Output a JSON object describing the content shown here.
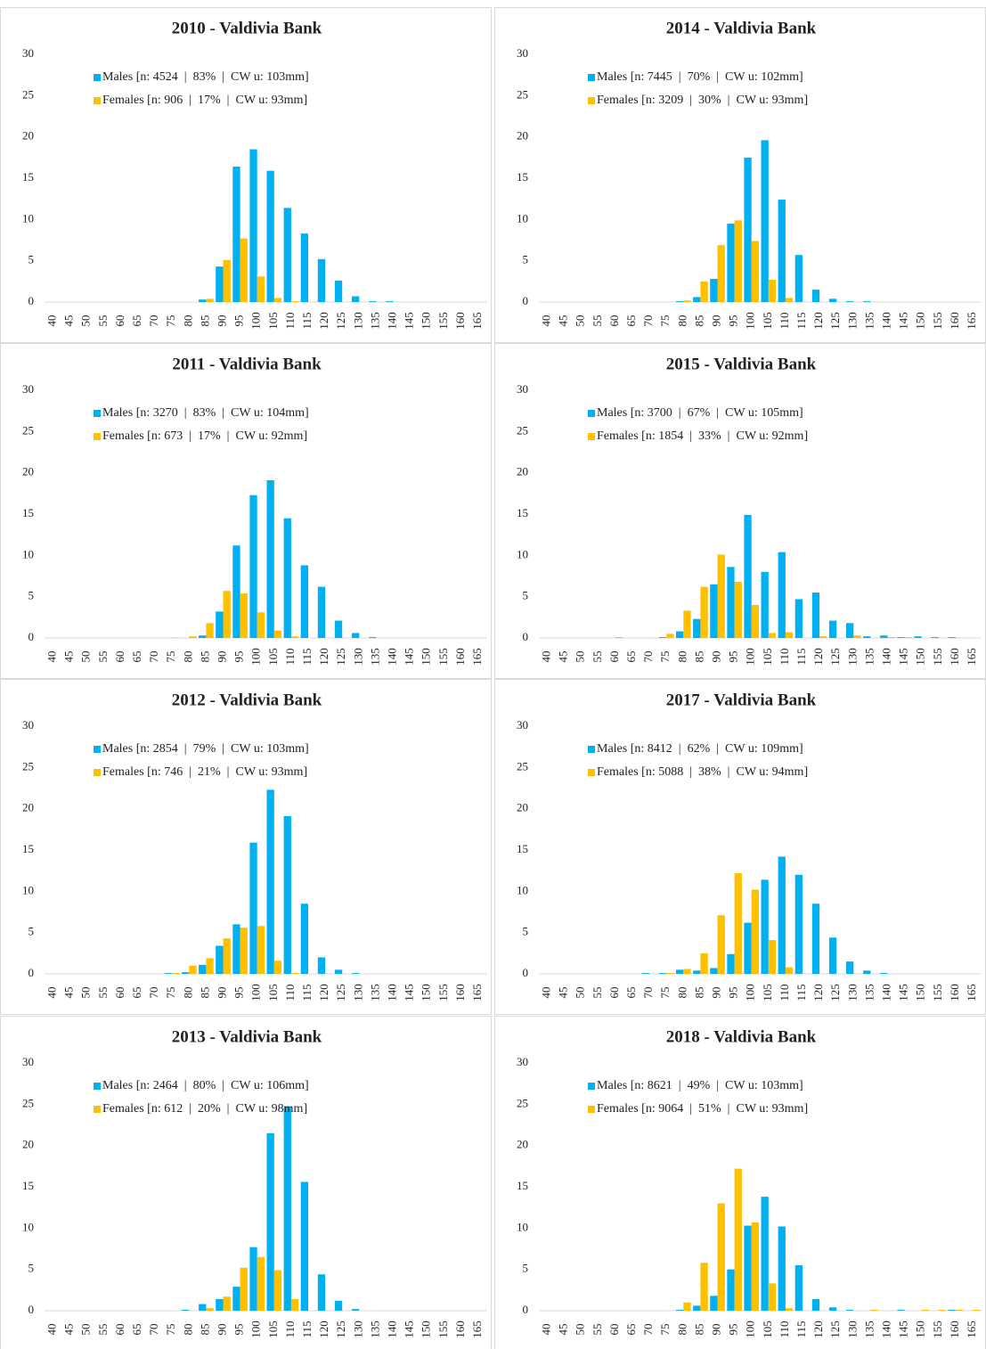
{
  "chart_data": [
    {
      "type": "bar",
      "title": "2010 - Valdivia Bank",
      "categories": [
        "40",
        "45",
        "50",
        "55",
        "60",
        "65",
        "70",
        "75",
        "80",
        "85",
        "90",
        "95",
        "100",
        "105",
        "110",
        "115",
        "120",
        "125",
        "130",
        "135",
        "140",
        "145",
        "150",
        "155",
        "160",
        "165"
      ],
      "ylim": [
        0,
        30
      ],
      "yticks": [
        0,
        5,
        10,
        15,
        20,
        25,
        30
      ],
      "series": [
        {
          "name": "Males [n: 4524  |  83%  |  CW u: 103mm]",
          "color": "#00b0f0",
          "values": [
            0,
            0,
            0,
            0,
            0,
            0,
            0,
            0,
            0,
            0.3,
            4.3,
            16.4,
            18.5,
            15.9,
            11.4,
            8.3,
            5.2,
            2.6,
            0.7,
            0.1,
            0.1,
            0,
            0,
            0,
            0,
            0
          ]
        },
        {
          "name": "Females [n: 906  |  17%  |  CW u: 93mm]",
          "color": "#ffc000",
          "values": [
            0,
            0,
            0,
            0,
            0,
            0,
            0,
            0,
            0,
            0.4,
            5.1,
            7.7,
            3.1,
            0.5,
            0.1,
            0,
            0,
            0,
            0,
            0,
            0,
            0,
            0,
            0,
            0,
            0
          ]
        }
      ]
    },
    {
      "type": "bar",
      "title": "2011 - Valdivia Bank",
      "categories": [
        "40",
        "45",
        "50",
        "55",
        "60",
        "65",
        "70",
        "75",
        "80",
        "85",
        "90",
        "95",
        "100",
        "105",
        "110",
        "115",
        "120",
        "125",
        "130",
        "135",
        "140",
        "145",
        "150",
        "155",
        "160",
        "165"
      ],
      "ylim": [
        0,
        30
      ],
      "yticks": [
        0,
        5,
        10,
        15,
        20,
        25,
        30
      ],
      "series": [
        {
          "name": "Males [n: 3270  |  83%  |  CW u: 104mm]",
          "color": "#00b0f0",
          "values": [
            0,
            0,
            0,
            0,
            0,
            0,
            0,
            0,
            0,
            0.3,
            3.2,
            11.2,
            17.3,
            19.1,
            14.5,
            8.8,
            6.2,
            2.1,
            0.6,
            0.1,
            0,
            0,
            0,
            0,
            0,
            0
          ]
        },
        {
          "name": "Females [n: 673  |  17%  |  CW u: 92mm]",
          "color": "#ffc000",
          "values": [
            0,
            0,
            0,
            0,
            0,
            0,
            0,
            0.05,
            0.2,
            1.8,
            5.7,
            5.4,
            3.1,
            0.9,
            0.2,
            0,
            0,
            0,
            0,
            0,
            0,
            0,
            0,
            0,
            0,
            0
          ]
        }
      ]
    },
    {
      "type": "bar",
      "title": "2012 - Valdivia Bank",
      "categories": [
        "40",
        "45",
        "50",
        "55",
        "60",
        "65",
        "70",
        "75",
        "80",
        "85",
        "90",
        "95",
        "100",
        "105",
        "110",
        "115",
        "120",
        "125",
        "130",
        "135",
        "140",
        "145",
        "150",
        "155",
        "160",
        "165"
      ],
      "ylim": [
        0,
        30
      ],
      "yticks": [
        0,
        5,
        10,
        15,
        20,
        25,
        30
      ],
      "series": [
        {
          "name": "Males [n: 2854  |  79%  |  CW u: 103mm]",
          "color": "#00b0f0",
          "values": [
            0,
            0,
            0,
            0,
            0,
            0,
            0,
            0.1,
            0.2,
            1.1,
            3.4,
            6.0,
            15.9,
            22.3,
            19.1,
            8.5,
            2.0,
            0.5,
            0.1,
            0,
            0,
            0,
            0,
            0,
            0,
            0
          ]
        },
        {
          "name": "Females [n: 746  |  21%  |  CW u: 93mm]",
          "color": "#ffc000",
          "values": [
            0,
            0,
            0,
            0,
            0,
            0,
            0,
            0.1,
            1.0,
            1.9,
            4.3,
            5.6,
            5.8,
            1.6,
            0.1,
            0,
            0,
            0,
            0,
            0,
            0,
            0,
            0,
            0,
            0,
            0
          ]
        }
      ]
    },
    {
      "type": "bar",
      "title": "2013 - Valdivia Bank",
      "categories": [
        "40",
        "45",
        "50",
        "55",
        "60",
        "65",
        "70",
        "75",
        "80",
        "85",
        "90",
        "95",
        "100",
        "105",
        "110",
        "115",
        "120",
        "125",
        "130",
        "135",
        "140",
        "145",
        "150",
        "155",
        "160",
        "165"
      ],
      "ylim": [
        0,
        30
      ],
      "yticks": [
        0,
        5,
        10,
        15,
        20,
        25,
        30
      ],
      "series": [
        {
          "name": "Males [n: 2464  |  80%  |  CW u: 106mm]",
          "color": "#00b0f0",
          "values": [
            0,
            0,
            0,
            0,
            0,
            0,
            0,
            0,
            0.1,
            0.8,
            1.4,
            2.9,
            7.7,
            21.5,
            24.7,
            15.6,
            4.4,
            1.2,
            0.2,
            0,
            0,
            0,
            0,
            0,
            0,
            0
          ]
        },
        {
          "name": "Females [n: 612  |  20%  |  CW u: 98mm]",
          "color": "#ffc000",
          "values": [
            0,
            0,
            0,
            0,
            0,
            0,
            0,
            0,
            0,
            0.3,
            1.7,
            5.2,
            6.5,
            4.9,
            1.4,
            0,
            0,
            0,
            0,
            0,
            0,
            0,
            0,
            0,
            0,
            0
          ]
        }
      ]
    },
    {
      "type": "bar",
      "title": "2014 - Valdivia Bank",
      "categories": [
        "40",
        "45",
        "50",
        "55",
        "60",
        "65",
        "70",
        "75",
        "80",
        "85",
        "90",
        "95",
        "100",
        "105",
        "110",
        "115",
        "120",
        "125",
        "130",
        "135",
        "140",
        "145",
        "150",
        "155",
        "160",
        "165"
      ],
      "ylim": [
        0,
        30
      ],
      "yticks": [
        0,
        5,
        10,
        15,
        20,
        25,
        30
      ],
      "series": [
        {
          "name": "Males [n: 7445  |  70%  |  CW u: 102mm]",
          "color": "#00b0f0",
          "values": [
            0,
            0,
            0,
            0,
            0,
            0,
            0,
            0,
            0.1,
            0.6,
            2.8,
            9.5,
            17.5,
            19.6,
            12.4,
            5.7,
            1.5,
            0.4,
            0.1,
            0.1,
            0,
            0,
            0,
            0,
            0,
            0
          ]
        },
        {
          "name": "Females [n: 3209  |  30%  |  CW u: 93mm]",
          "color": "#ffc000",
          "values": [
            0,
            0,
            0,
            0,
            0,
            0,
            0,
            0,
            0.2,
            2.5,
            6.9,
            9.9,
            7.4,
            2.7,
            0.5,
            0,
            0,
            0,
            0,
            0,
            0,
            0,
            0,
            0,
            0,
            0
          ]
        }
      ]
    },
    {
      "type": "bar",
      "title": "2015 - Valdivia Bank",
      "categories": [
        "40",
        "45",
        "50",
        "55",
        "60",
        "65",
        "70",
        "75",
        "80",
        "85",
        "90",
        "95",
        "100",
        "105",
        "110",
        "115",
        "120",
        "125",
        "130",
        "135",
        "140",
        "145",
        "150",
        "155",
        "160",
        "165"
      ],
      "ylim": [
        0,
        30
      ],
      "yticks": [
        0,
        5,
        10,
        15,
        20,
        25,
        30
      ],
      "series": [
        {
          "name": "Males [n: 3700  |  67%  |  CW u: 105mm]",
          "color": "#00b0f0",
          "values": [
            0,
            0,
            0,
            0,
            0,
            0,
            0,
            0.1,
            0.8,
            2.3,
            6.5,
            8.6,
            14.9,
            8.0,
            10.4,
            4.7,
            5.5,
            2.1,
            1.8,
            0.2,
            0.3,
            0.1,
            0.2,
            0.1,
            0.1,
            0
          ]
        },
        {
          "name": "Females [n: 1854  |  33%  |  CW u: 92mm]",
          "color": "#ffc000",
          "values": [
            0,
            0,
            0,
            0,
            0.1,
            0,
            0,
            0.5,
            3.3,
            6.2,
            10.1,
            6.8,
            4.0,
            0.6,
            0.7,
            0,
            0.2,
            0,
            0.3,
            0,
            0.1,
            0.1,
            0,
            0,
            0,
            0
          ]
        }
      ]
    },
    {
      "type": "bar",
      "title": "2017 - Valdivia Bank",
      "categories": [
        "40",
        "45",
        "50",
        "55",
        "60",
        "65",
        "70",
        "75",
        "80",
        "85",
        "90",
        "95",
        "100",
        "105",
        "110",
        "115",
        "120",
        "125",
        "130",
        "135",
        "140",
        "145",
        "150",
        "155",
        "160",
        "165"
      ],
      "ylim": [
        0,
        30
      ],
      "yticks": [
        0,
        5,
        10,
        15,
        20,
        25,
        30
      ],
      "series": [
        {
          "name": "Males [n: 8412  |  62%  |  CW u: 109mm]",
          "color": "#00b0f0",
          "values": [
            0,
            0,
            0,
            0,
            0,
            0,
            0.1,
            0.1,
            0.5,
            0.4,
            0.7,
            2.4,
            6.2,
            11.4,
            14.2,
            12.0,
            8.5,
            4.4,
            1.5,
            0.4,
            0.1,
            0,
            0,
            0,
            0,
            0
          ]
        },
        {
          "name": "Females [n: 5088  |  38%  |  CW u: 94mm]",
          "color": "#ffc000",
          "values": [
            0,
            0,
            0,
            0,
            0,
            0,
            0,
            0.1,
            0.6,
            2.5,
            7.1,
            12.2,
            10.2,
            4.1,
            0.8,
            0,
            0,
            0,
            0,
            0,
            0,
            0,
            0,
            0,
            0,
            0
          ]
        }
      ]
    },
    {
      "type": "bar",
      "title": "2018 - Valdivia Bank",
      "categories": [
        "40",
        "45",
        "50",
        "55",
        "60",
        "65",
        "70",
        "75",
        "80",
        "85",
        "90",
        "95",
        "100",
        "105",
        "110",
        "115",
        "120",
        "125",
        "130",
        "135",
        "140",
        "145",
        "150",
        "155",
        "160",
        "165"
      ],
      "ylim": [
        0,
        30
      ],
      "yticks": [
        0,
        5,
        10,
        15,
        20,
        25,
        30
      ],
      "series": [
        {
          "name": "Males [n: 8621  |  49%  |  CW u: 103mm]",
          "color": "#00b0f0",
          "values": [
            0,
            0,
            0,
            0,
            0,
            0,
            0,
            0,
            0.1,
            0.6,
            1.8,
            5.0,
            10.3,
            13.8,
            10.2,
            5.5,
            1.4,
            0.4,
            0.1,
            0,
            0,
            0.1,
            0,
            0,
            0.1,
            0
          ]
        },
        {
          "name": "Females [n: 9064  |  51%  |  CW u: 93mm]",
          "color": "#ffc000",
          "values": [
            0,
            0,
            0,
            0,
            0,
            0,
            0,
            0,
            1.0,
            5.8,
            13.0,
            17.2,
            10.7,
            3.3,
            0.3,
            0,
            0,
            0,
            0,
            0.1,
            0,
            0,
            0.1,
            0.1,
            0.1,
            0.1
          ]
        }
      ]
    }
  ]
}
